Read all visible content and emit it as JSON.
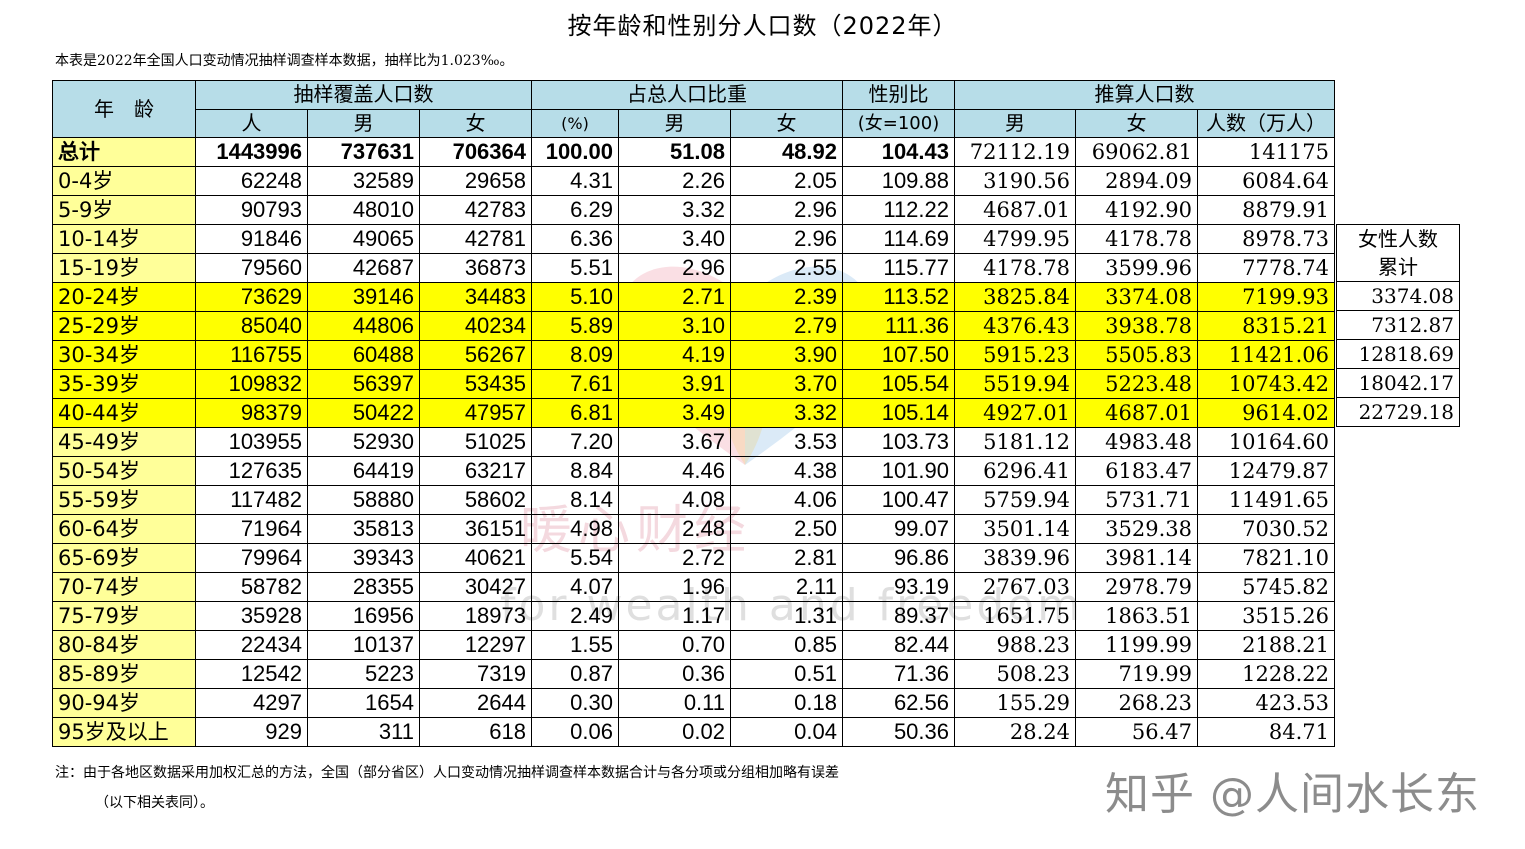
{
  "title": "按年龄和性别分人口数（2022年）",
  "subtitle": "本表是2022年全国人口变动情况抽样调查样本数据，抽样比为1.023‰。",
  "header": {
    "age": "年　龄",
    "sample_group": "抽样覆盖人口数",
    "share_group": "占总人口比重",
    "sex_ratio": "性别比",
    "estimate_group": "推算人口数",
    "sub": {
      "people": "人",
      "male": "男",
      "female": "女",
      "pct": "(%)",
      "share_male": "男",
      "share_female": "女",
      "ratio_unit": "(女=100)",
      "est_male": "男",
      "est_female": "女",
      "est_total": "人数（万人）"
    }
  },
  "rows": [
    {
      "age": "总计",
      "total": "1443996",
      "male": "737631",
      "female": "706364",
      "pct": "100.00",
      "share_m": "51.08",
      "share_f": "48.92",
      "ratio": "104.43",
      "est_m": "72112.19",
      "est_f": "69062.81",
      "est_t": "141175"
    },
    {
      "age": "0-4岁",
      "total": "62248",
      "male": "32589",
      "female": "29658",
      "pct": "4.31",
      "share_m": "2.26",
      "share_f": "2.05",
      "ratio": "109.88",
      "est_m": "3190.56",
      "est_f": "2894.09",
      "est_t": "6084.64"
    },
    {
      "age": "5-9岁",
      "total": "90793",
      "male": "48010",
      "female": "42783",
      "pct": "6.29",
      "share_m": "3.32",
      "share_f": "2.96",
      "ratio": "112.22",
      "est_m": "4687.01",
      "est_f": "4192.90",
      "est_t": "8879.91"
    },
    {
      "age": "10-14岁",
      "total": "91846",
      "male": "49065",
      "female": "42781",
      "pct": "6.36",
      "share_m": "3.40",
      "share_f": "2.96",
      "ratio": "114.69",
      "est_m": "4799.95",
      "est_f": "4178.78",
      "est_t": "8978.73"
    },
    {
      "age": "15-19岁",
      "total": "79560",
      "male": "42687",
      "female": "36873",
      "pct": "5.51",
      "share_m": "2.96",
      "share_f": "2.55",
      "ratio": "115.77",
      "est_m": "4178.78",
      "est_f": "3599.96",
      "est_t": "7778.74"
    },
    {
      "age": "20-24岁",
      "total": "73629",
      "male": "39146",
      "female": "34483",
      "pct": "5.10",
      "share_m": "2.71",
      "share_f": "2.39",
      "ratio": "113.52",
      "est_m": "3825.84",
      "est_f": "3374.08",
      "est_t": "7199.93"
    },
    {
      "age": "25-29岁",
      "total": "85040",
      "male": "44806",
      "female": "40234",
      "pct": "5.89",
      "share_m": "3.10",
      "share_f": "2.79",
      "ratio": "111.36",
      "est_m": "4376.43",
      "est_f": "3938.78",
      "est_t": "8315.21"
    },
    {
      "age": "30-34岁",
      "total": "116755",
      "male": "60488",
      "female": "56267",
      "pct": "8.09",
      "share_m": "4.19",
      "share_f": "3.90",
      "ratio": "107.50",
      "est_m": "5915.23",
      "est_f": "5505.83",
      "est_t": "11421.06"
    },
    {
      "age": "35-39岁",
      "total": "109832",
      "male": "56397",
      "female": "53435",
      "pct": "7.61",
      "share_m": "3.91",
      "share_f": "3.70",
      "ratio": "105.54",
      "est_m": "5519.94",
      "est_f": "5223.48",
      "est_t": "10743.42"
    },
    {
      "age": "40-44岁",
      "total": "98379",
      "male": "50422",
      "female": "47957",
      "pct": "6.81",
      "share_m": "3.49",
      "share_f": "3.32",
      "ratio": "105.14",
      "est_m": "4927.01",
      "est_f": "4687.01",
      "est_t": "9614.02"
    },
    {
      "age": "45-49岁",
      "total": "103955",
      "male": "52930",
      "female": "51025",
      "pct": "7.20",
      "share_m": "3.67",
      "share_f": "3.53",
      "ratio": "103.73",
      "est_m": "5181.12",
      "est_f": "4983.48",
      "est_t": "10164.60"
    },
    {
      "age": "50-54岁",
      "total": "127635",
      "male": "64419",
      "female": "63217",
      "pct": "8.84",
      "share_m": "4.46",
      "share_f": "4.38",
      "ratio": "101.90",
      "est_m": "6296.41",
      "est_f": "6183.47",
      "est_t": "12479.87"
    },
    {
      "age": "55-59岁",
      "total": "117482",
      "male": "58880",
      "female": "58602",
      "pct": "8.14",
      "share_m": "4.08",
      "share_f": "4.06",
      "ratio": "100.47",
      "est_m": "5759.94",
      "est_f": "5731.71",
      "est_t": "11491.65"
    },
    {
      "age": "60-64岁",
      "total": "71964",
      "male": "35813",
      "female": "36151",
      "pct": "4.98",
      "share_m": "2.48",
      "share_f": "2.50",
      "ratio": "99.07",
      "est_m": "3501.14",
      "est_f": "3529.38",
      "est_t": "7030.52"
    },
    {
      "age": "65-69岁",
      "total": "79964",
      "male": "39343",
      "female": "40621",
      "pct": "5.54",
      "share_m": "2.72",
      "share_f": "2.81",
      "ratio": "96.86",
      "est_m": "3839.96",
      "est_f": "3981.14",
      "est_t": "7821.10"
    },
    {
      "age": "70-74岁",
      "total": "58782",
      "male": "28355",
      "female": "30427",
      "pct": "4.07",
      "share_m": "1.96",
      "share_f": "2.11",
      "ratio": "93.19",
      "est_m": "2767.03",
      "est_f": "2978.79",
      "est_t": "5745.82"
    },
    {
      "age": "75-79岁",
      "total": "35928",
      "male": "16956",
      "female": "18973",
      "pct": "2.49",
      "share_m": "1.17",
      "share_f": "1.31",
      "ratio": "89.37",
      "est_m": "1651.75",
      "est_f": "1863.51",
      "est_t": "3515.26"
    },
    {
      "age": "80-84岁",
      "total": "22434",
      "male": "10137",
      "female": "12297",
      "pct": "1.55",
      "share_m": "0.70",
      "share_f": "0.85",
      "ratio": "82.44",
      "est_m": "988.23",
      "est_f": "1199.99",
      "est_t": "2188.21"
    },
    {
      "age": "85-89岁",
      "total": "12542",
      "male": "5223",
      "female": "7319",
      "pct": "0.87",
      "share_m": "0.36",
      "share_f": "0.51",
      "ratio": "71.36",
      "est_m": "508.23",
      "est_f": "719.99",
      "est_t": "1228.22"
    },
    {
      "age": "90-94岁",
      "total": "4297",
      "male": "1654",
      "female": "2644",
      "pct": "0.30",
      "share_m": "0.11",
      "share_f": "0.18",
      "ratio": "62.56",
      "est_m": "155.29",
      "est_f": "268.23",
      "est_t": "423.53"
    },
    {
      "age": "95岁及以上",
      "total": "929",
      "male": "311",
      "female": "618",
      "pct": "0.06",
      "share_m": "0.02",
      "share_f": "0.04",
      "ratio": "50.36",
      "est_m": "28.24",
      "est_f": "56.47",
      "est_t": "84.71"
    }
  ],
  "highlight_rows": [
    5,
    6,
    7,
    8,
    9
  ],
  "highlight_color": "#ffff00",
  "header_color": "#b7dde8",
  "age_column_color": "#ffff99",
  "side_table": {
    "header": "女性人数累计",
    "values": [
      "3374.08",
      "7312.87",
      "12818.69",
      "18042.17",
      "22729.18"
    ]
  },
  "note_line1": "注：由于各地区数据采用加权汇总的方法，全国（部分省区）人口变动情况抽样调查样本数据合计与各分项或分组相加略有误差",
  "note_line2": "（以下相关表同）。",
  "credit": "知乎 @人间水长东",
  "watermark": {
    "text_cn": "暖心财经",
    "text_en": "for wealth and freedom"
  }
}
